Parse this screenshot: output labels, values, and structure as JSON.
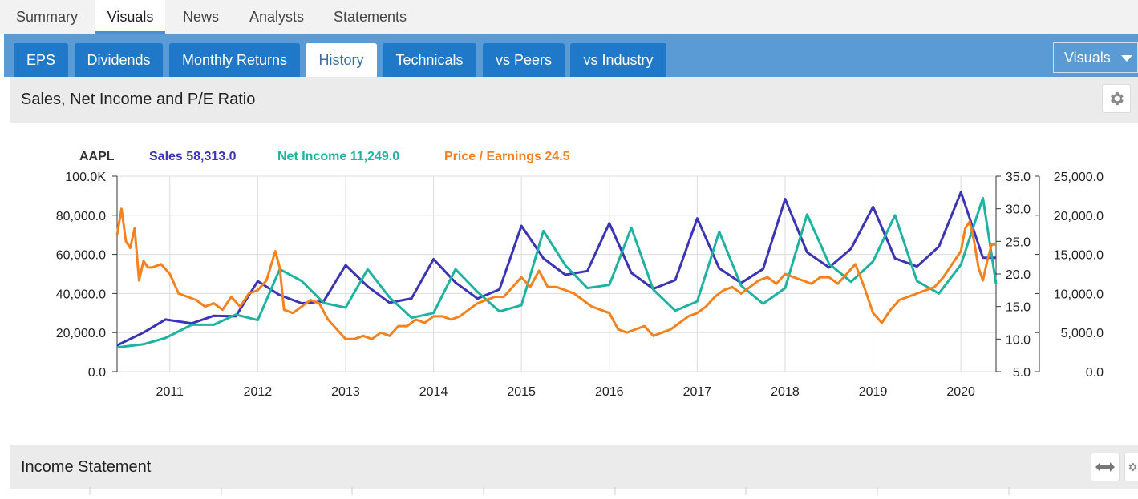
{
  "top_tabs": [
    "Summary",
    "Visuals",
    "News",
    "Analysts",
    "Statements"
  ],
  "active_top_tab": "Visuals",
  "sub_tabs": [
    "EPS",
    "Dividends",
    "Monthly Returns",
    "History",
    "Technicals",
    "vs Peers",
    "vs Industry"
  ],
  "active_sub_tab": "History",
  "visuals_dropdown": "Visuals",
  "panel1": {
    "title": "Sales, Net Income and P/E Ratio"
  },
  "legend": {
    "ticker": "AAPL",
    "sales": "Sales 58,313.0",
    "net_income": "Net Income 11,249.0",
    "pe": "Price / Earnings 24.5"
  },
  "panel2": {
    "title": "Income Statement"
  },
  "colors": {
    "sales": "#3b35b5",
    "net_income": "#20b2a0",
    "pe": "#f58220",
    "tab_blue": "#1f78c8",
    "band_blue": "#5b9bd5"
  },
  "chart_data": {
    "type": "line",
    "x_ticks": [
      "2011",
      "2012",
      "2013",
      "2014",
      "2015",
      "2016",
      "2017",
      "2018",
      "2019",
      "2020"
    ],
    "y_left_ticks": [
      "100.0K",
      "80,000.0",
      "60,000.0",
      "40,000.0",
      "20,000.0",
      "0.0"
    ],
    "y_mid_ticks": [
      "35.0",
      "30.0",
      "25.0",
      "20.0",
      "15.0",
      "10.0",
      "5.0"
    ],
    "y_right_ticks": [
      "25,000.0",
      "20,000.0",
      "15,000.0",
      "10,000.0",
      "5,000.0",
      "0.0"
    ],
    "y_left_range": [
      0,
      100000
    ],
    "y_mid_range": [
      5,
      35
    ],
    "y_right_range": [
      0,
      25000
    ],
    "x_range": [
      2010.4,
      2020.4
    ],
    "series": [
      {
        "name": "Sales",
        "axis": "left",
        "x": [
          2010.4,
          2010.7,
          2010.95,
          2011.25,
          2011.5,
          2011.75,
          2012.0,
          2012.25,
          2012.5,
          2012.75,
          2013.0,
          2013.25,
          2013.5,
          2013.75,
          2014.0,
          2014.25,
          2014.5,
          2014.75,
          2015.0,
          2015.25,
          2015.5,
          2015.75,
          2016.0,
          2016.25,
          2016.5,
          2016.75,
          2017.0,
          2017.25,
          2017.5,
          2017.75,
          2018.0,
          2018.25,
          2018.5,
          2018.75,
          2019.0,
          2019.25,
          2019.5,
          2019.75,
          2020.0,
          2020.25,
          2020.4
        ],
        "values": [
          13500,
          20000,
          26700,
          24700,
          28600,
          28300,
          46300,
          39200,
          35000,
          36000,
          54500,
          43600,
          35300,
          37500,
          57600,
          45600,
          37400,
          42100,
          74600,
          58000,
          49600,
          51500,
          75900,
          50600,
          42400,
          46900,
          78400,
          52900,
          45400,
          52600,
          88300,
          61100,
          53300,
          62900,
          84300,
          58000,
          53800,
          64000,
          91800,
          58300,
          58300
        ]
      },
      {
        "name": "Net Income",
        "axis": "right",
        "x": [
          2010.4,
          2010.7,
          2010.95,
          2011.25,
          2011.5,
          2011.75,
          2012.0,
          2012.25,
          2012.5,
          2012.75,
          2013.0,
          2013.25,
          2013.5,
          2013.75,
          2014.0,
          2014.25,
          2014.5,
          2014.75,
          2015.0,
          2015.25,
          2015.5,
          2015.75,
          2016.0,
          2016.25,
          2016.5,
          2016.75,
          2017.0,
          2017.25,
          2017.5,
          2017.75,
          2018.0,
          2018.25,
          2018.5,
          2018.75,
          2019.0,
          2019.25,
          2019.5,
          2019.75,
          2020.0,
          2020.25,
          2020.4
        ],
        "values": [
          3100,
          3500,
          4300,
          6000,
          6000,
          7300,
          6600,
          13100,
          11600,
          8800,
          8200,
          13100,
          9500,
          6900,
          7500,
          13100,
          10200,
          7700,
          8500,
          18000,
          13600,
          10700,
          11100,
          18400,
          10500,
          7800,
          9000,
          17900,
          11000,
          8700,
          10700,
          20100,
          13800,
          11500,
          14100,
          20000,
          11600,
          10000,
          13700,
          22200,
          11249
        ]
      },
      {
        "name": "Price / Earnings",
        "axis": "mid",
        "x": [
          2010.4,
          2010.45,
          2010.5,
          2010.55,
          2010.6,
          2010.65,
          2010.7,
          2010.75,
          2010.8,
          2010.9,
          2011.0,
          2011.1,
          2011.2,
          2011.3,
          2011.4,
          2011.5,
          2011.6,
          2011.7,
          2011.8,
          2011.9,
          2012.0,
          2012.1,
          2012.2,
          2012.25,
          2012.3,
          2012.4,
          2012.5,
          2012.6,
          2012.7,
          2012.8,
          2012.9,
          2013.0,
          2013.1,
          2013.2,
          2013.3,
          2013.4,
          2013.5,
          2013.6,
          2013.7,
          2013.8,
          2013.9,
          2014.0,
          2014.1,
          2014.2,
          2014.3,
          2014.4,
          2014.5,
          2014.6,
          2014.7,
          2014.8,
          2014.9,
          2015.0,
          2015.1,
          2015.2,
          2015.3,
          2015.4,
          2015.5,
          2015.6,
          2015.7,
          2015.8,
          2015.9,
          2016.0,
          2016.1,
          2016.2,
          2016.3,
          2016.4,
          2016.5,
          2016.6,
          2016.7,
          2016.8,
          2016.9,
          2017.0,
          2017.1,
          2017.2,
          2017.3,
          2017.4,
          2017.5,
          2017.6,
          2017.7,
          2017.8,
          2017.9,
          2018.0,
          2018.1,
          2018.2,
          2018.3,
          2018.4,
          2018.5,
          2018.6,
          2018.7,
          2018.8,
          2018.9,
          2019.0,
          2019.1,
          2019.2,
          2019.3,
          2019.4,
          2019.5,
          2019.6,
          2019.7,
          2019.8,
          2019.9,
          2020.0,
          2020.05,
          2020.1,
          2020.15,
          2020.2,
          2020.25,
          2020.3,
          2020.35,
          2020.4
        ],
        "values": [
          26,
          30,
          25,
          24,
          27,
          19,
          22,
          21,
          21,
          21.5,
          20,
          17,
          16.5,
          16,
          15,
          15.5,
          14.5,
          16.5,
          15,
          17,
          17.5,
          19,
          23.5,
          21,
          14.5,
          14,
          15,
          16,
          15.5,
          13,
          11.5,
          10,
          10,
          10.5,
          10,
          11,
          10.5,
          12,
          12,
          13,
          12.5,
          13.5,
          13.5,
          13,
          13.5,
          14.5,
          15.5,
          16,
          16.5,
          16.5,
          18,
          19.5,
          18,
          20.5,
          18,
          18,
          17.5,
          17,
          16,
          15,
          14.5,
          14,
          11.5,
          11,
          11.5,
          12,
          10.5,
          11,
          11.5,
          12.5,
          13.5,
          14,
          15,
          16.5,
          17.5,
          18,
          17,
          18,
          19,
          19.5,
          18.5,
          20,
          19.5,
          19,
          18.5,
          19.5,
          19.5,
          18.5,
          20,
          21.5,
          18,
          14,
          12.5,
          14.5,
          16,
          16.5,
          17,
          17.5,
          18,
          19.5,
          21.5,
          23.5,
          27,
          28,
          25,
          21,
          19,
          22,
          24.5,
          24.5
        ]
      }
    ]
  }
}
